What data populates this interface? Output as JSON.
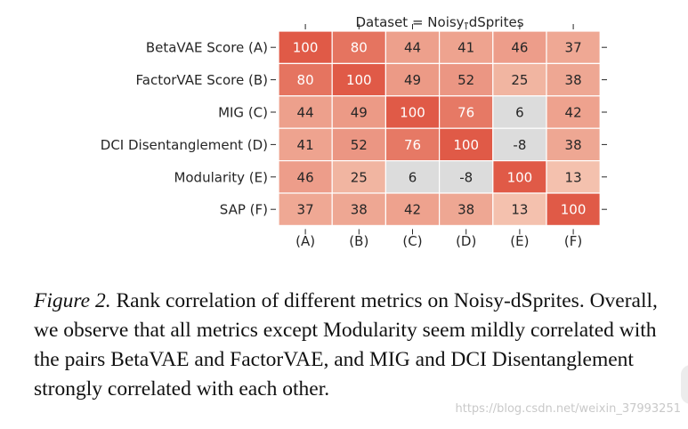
{
  "chart_data": {
    "type": "heatmap",
    "title": "Dataset = Noisy-dSprites",
    "row_labels": [
      "BetaVAE Score (A)",
      "FactorVAE Score (B)",
      "MIG (C)",
      "DCI Disentanglement (D)",
      "Modularity (E)",
      "SAP (F)"
    ],
    "col_labels": [
      "(A)",
      "(B)",
      "(C)",
      "(D)",
      "(E)",
      "(F)"
    ],
    "values": [
      [
        100,
        80,
        44,
        41,
        46,
        37
      ],
      [
        80,
        100,
        49,
        52,
        25,
        38
      ],
      [
        44,
        49,
        100,
        76,
        6,
        42
      ],
      [
        41,
        52,
        76,
        100,
        -8,
        38
      ],
      [
        46,
        25,
        6,
        -8,
        100,
        13
      ],
      [
        37,
        38,
        42,
        38,
        13,
        100
      ]
    ],
    "colors": {
      "high": "#e05a47",
      "low": "#dcdcdc",
      "text_dark": "#262626",
      "text_light": "#ffffff"
    }
  },
  "caption": {
    "label": "Figure 2.",
    "text": " Rank correlation of different metrics on Noisy-dSprites. Overall, we observe that all metrics except Modularity seem mildly correlated with the pairs BetaVAE and FactorVAE, and MIG and DCI Disentanglement strongly correlated with each other."
  },
  "watermark": "https://blog.csdn.net/weixin_37993251"
}
